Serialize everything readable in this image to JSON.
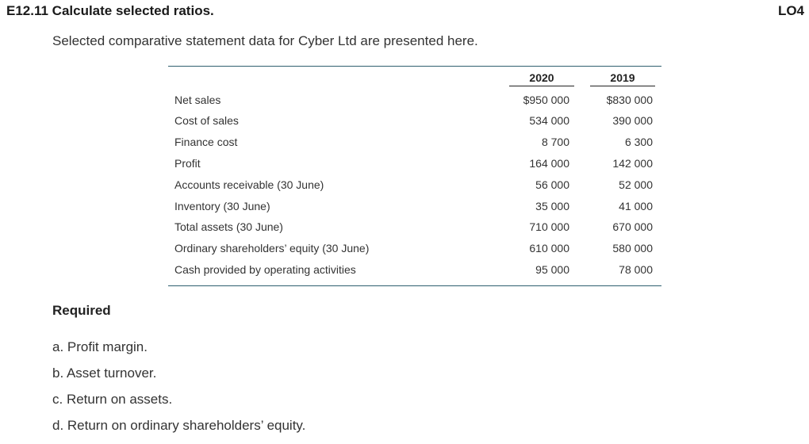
{
  "header": {
    "exercise_title": "E12.11 Calculate selected ratios.",
    "lo_tag": "LO4"
  },
  "intro_text": "Selected comparative statement data for Cyber Ltd are presented here.",
  "table": {
    "columns": [
      "2020",
      "2019"
    ],
    "rows": [
      {
        "label": "Net sales",
        "v2020": "$950 000",
        "v2019": "$830 000"
      },
      {
        "label": "Cost of sales",
        "v2020": "534 000",
        "v2019": "390 000"
      },
      {
        "label": "Finance cost",
        "v2020": "8 700",
        "v2019": "6 300"
      },
      {
        "label": "Profit",
        "v2020": "164 000",
        "v2019": "142 000"
      },
      {
        "label": "Accounts receivable (30 June)",
        "v2020": "56 000",
        "v2019": "52 000"
      },
      {
        "label": "Inventory (30 June)",
        "v2020": "35 000",
        "v2019": "41 000"
      },
      {
        "label": "Total assets (30 June)",
        "v2020": "710 000",
        "v2019": "670 000"
      },
      {
        "label": "Ordinary shareholders’ equity (30 June)",
        "v2020": "610 000",
        "v2019": "580 000"
      },
      {
        "label": "Cash provided by operating activities",
        "v2020": "95 000",
        "v2019": "78 000"
      }
    ]
  },
  "required": {
    "heading": "Required",
    "items": [
      "a. Profit margin.",
      "b. Asset turnover.",
      "c. Return on assets.",
      "d. Return on ordinary shareholders’ equity."
    ]
  }
}
